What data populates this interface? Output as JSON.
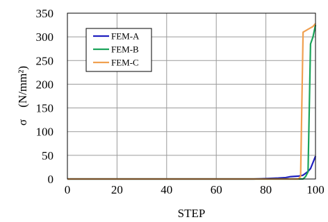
{
  "chart_data": {
    "type": "line",
    "title": "",
    "xlabel": "STEP",
    "ylabel": "σ　(N/mm²)",
    "xlim": [
      0,
      100
    ],
    "ylim": [
      0,
      350
    ],
    "xticks": [
      "0",
      "20",
      "40",
      "60",
      "80",
      "100"
    ],
    "yticks": [
      "0",
      "50",
      "100",
      "150",
      "200",
      "250",
      "300",
      "350"
    ],
    "grid": true,
    "legend_position": "upper-left",
    "series": [
      {
        "name": "FEM-A",
        "color": "#1f1fbf",
        "points": [
          [
            0,
            0
          ],
          [
            75,
            0
          ],
          [
            80,
            1
          ],
          [
            85,
            2
          ],
          [
            88,
            3
          ],
          [
            90,
            5
          ],
          [
            93,
            6
          ],
          [
            95,
            8
          ],
          [
            97,
            16
          ],
          [
            98,
            22
          ],
          [
            99,
            35
          ],
          [
            100,
            48
          ]
        ]
      },
      {
        "name": "FEM-B",
        "color": "#1aa35a",
        "points": [
          [
            0,
            0
          ],
          [
            95,
            0
          ],
          [
            96,
            5
          ],
          [
            97,
            15
          ],
          [
            98,
            285
          ],
          [
            99,
            300
          ],
          [
            100,
            325
          ]
        ]
      },
      {
        "name": "FEM-C",
        "color": "#f0a050",
        "points": [
          [
            0,
            0
          ],
          [
            93,
            0
          ],
          [
            94,
            5
          ],
          [
            95,
            310
          ],
          [
            96,
            313
          ],
          [
            97,
            316
          ],
          [
            98,
            319
          ],
          [
            99,
            322
          ],
          [
            100,
            328
          ]
        ]
      }
    ]
  }
}
